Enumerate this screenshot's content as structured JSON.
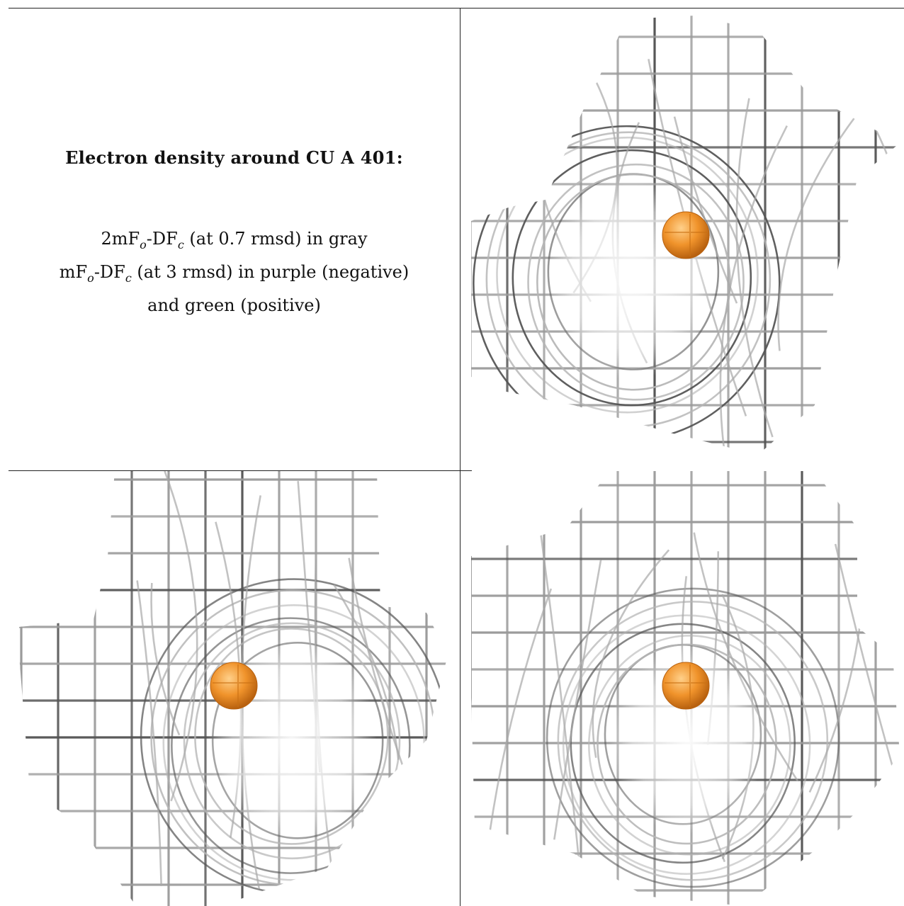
{
  "title": "Electron density around CU A 401:",
  "legend": {
    "line1": {
      "a": "2mF",
      "a_sub": "o",
      "b": "-DF",
      "b_sub": "c",
      "rest": " (at 0.7 rmsd) in gray"
    },
    "line2": {
      "a": "mF",
      "a_sub": "o",
      "b": "-DF",
      "b_sub": "c",
      "rest": " (at 3 rmsd) in purple (negative)"
    },
    "line3": "and green (positive)"
  },
  "colors": {
    "mesh": "#9a9a9a",
    "mesh_dark": "#555555",
    "atom": "#f0932b",
    "atom_edge": "#b8610f"
  },
  "panels": [
    {
      "name": "view-1",
      "atom": "CU A 401"
    },
    {
      "name": "view-2",
      "atom": "CU A 401"
    },
    {
      "name": "view-3",
      "atom": "CU A 401"
    }
  ]
}
